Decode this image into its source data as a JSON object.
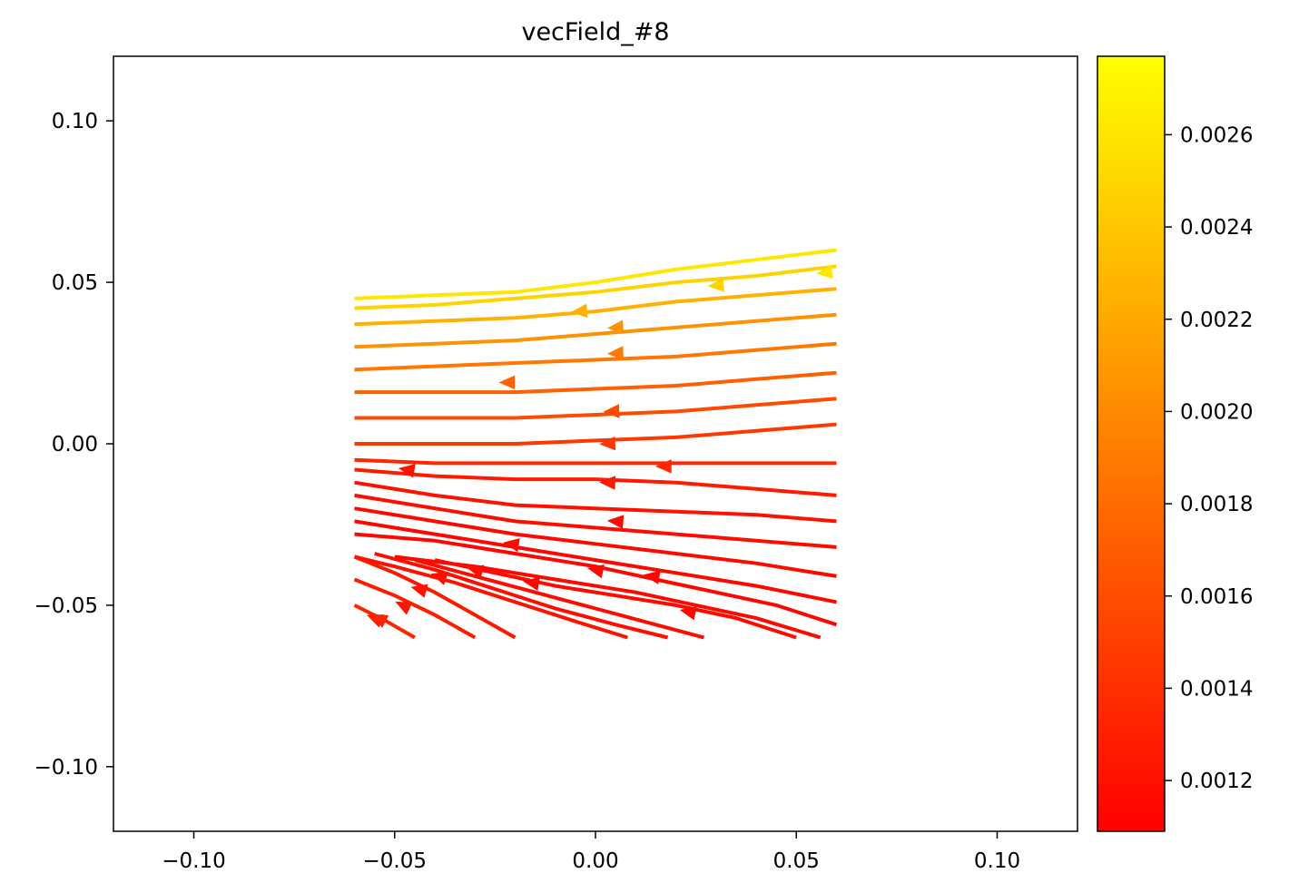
{
  "chart_data": {
    "type": "streamplot",
    "title": "vecField_#8",
    "xlabel": "",
    "ylabel": "",
    "xlim": [
      -0.12,
      0.12
    ],
    "ylim": [
      -0.12,
      0.12
    ],
    "x_ticks": [
      -0.1,
      -0.05,
      0.0,
      0.05,
      0.1
    ],
    "x_tick_labels": [
      "−0.10",
      "−0.05",
      "0.00",
      "0.05",
      "0.10"
    ],
    "y_ticks": [
      0.1,
      0.05,
      0.0,
      -0.05,
      -0.1
    ],
    "y_tick_labels": [
      "0.10",
      "0.05",
      "0.00",
      "−0.05",
      "−0.10"
    ],
    "grid": false,
    "field_domain": {
      "x": [
        -0.06,
        0.06
      ],
      "y": [
        -0.06,
        0.06
      ]
    },
    "field_model": {
      "description_of_flow": "leftward flow, shearing from upper-right to lower-left",
      "u_constant": -0.0012,
      "u_per_y": 0.0,
      "v_constant": 0.0006,
      "v_per_x": 0.012,
      "v_per_y": 0.0
    },
    "colorbar": {
      "colormap": "autumn",
      "min": 0.00109,
      "max": 0.00277,
      "min_color": "#ff0000",
      "max_color": "#ffff00",
      "ticks": [
        0.0012,
        0.0014,
        0.0016,
        0.0018,
        0.002,
        0.0022,
        0.0024,
        0.0026
      ],
      "tick_labels": [
        "0.0012",
        "0.0014",
        "0.0016",
        "0.0018",
        "0.0020",
        "0.0022",
        "0.0024",
        "0.0026"
      ]
    },
    "streamlines": [
      {
        "points": [
          [
            0.06,
            0.06
          ],
          [
            0.04,
            0.057
          ],
          [
            0.02,
            0.054
          ],
          [
            0.0,
            0.05
          ],
          [
            -0.02,
            0.047
          ],
          [
            -0.04,
            0.046
          ],
          [
            -0.06,
            0.045
          ]
        ],
        "speed": 0.00262,
        "arrow": [
          0.057,
          0.053
        ]
      },
      {
        "points": [
          [
            0.06,
            0.055
          ],
          [
            0.04,
            0.052
          ],
          [
            0.02,
            0.05
          ],
          [
            0.0,
            0.047
          ],
          [
            -0.02,
            0.045
          ],
          [
            -0.04,
            0.043
          ],
          [
            -0.06,
            0.042
          ]
        ],
        "speed": 0.00248,
        "arrow": [
          0.03,
          0.049
        ]
      },
      {
        "points": [
          [
            0.06,
            0.048
          ],
          [
            0.04,
            0.046
          ],
          [
            0.02,
            0.044
          ],
          [
            0.0,
            0.041
          ],
          [
            -0.02,
            0.039
          ],
          [
            -0.04,
            0.038
          ],
          [
            -0.06,
            0.037
          ]
        ],
        "speed": 0.00225,
        "arrow": [
          -0.004,
          0.041
        ]
      },
      {
        "points": [
          [
            0.06,
            0.04
          ],
          [
            0.04,
            0.038
          ],
          [
            0.02,
            0.036
          ],
          [
            0.0,
            0.034
          ],
          [
            -0.02,
            0.032
          ],
          [
            -0.04,
            0.031
          ],
          [
            -0.06,
            0.03
          ]
        ],
        "speed": 0.00205,
        "arrow": [
          0.005,
          0.036
        ]
      },
      {
        "points": [
          [
            0.06,
            0.031
          ],
          [
            0.04,
            0.029
          ],
          [
            0.02,
            0.027
          ],
          [
            0.0,
            0.026
          ],
          [
            -0.02,
            0.025
          ],
          [
            -0.04,
            0.024
          ],
          [
            -0.06,
            0.023
          ]
        ],
        "speed": 0.00188,
        "arrow": [
          0.005,
          0.028
        ]
      },
      {
        "points": [
          [
            0.06,
            0.022
          ],
          [
            0.04,
            0.02
          ],
          [
            0.02,
            0.018
          ],
          [
            0.0,
            0.017
          ],
          [
            -0.02,
            0.016
          ],
          [
            -0.04,
            0.016
          ],
          [
            -0.06,
            0.016
          ]
        ],
        "speed": 0.00172,
        "arrow": [
          -0.022,
          0.019
        ]
      },
      {
        "points": [
          [
            0.06,
            0.014
          ],
          [
            0.04,
            0.012
          ],
          [
            0.02,
            0.01
          ],
          [
            0.0,
            0.009
          ],
          [
            -0.02,
            0.008
          ],
          [
            -0.04,
            0.008
          ],
          [
            -0.06,
            0.008
          ]
        ],
        "speed": 0.00158,
        "arrow": [
          0.004,
          0.01
        ]
      },
      {
        "points": [
          [
            0.06,
            0.006
          ],
          [
            0.04,
            0.004
          ],
          [
            0.02,
            0.002
          ],
          [
            0.0,
            0.001
          ],
          [
            -0.02,
            0.0
          ],
          [
            -0.04,
            0.0
          ],
          [
            -0.06,
            0.0
          ]
        ],
        "speed": 0.00145,
        "arrow": [
          0.003,
          0.0
        ]
      },
      {
        "points": [
          [
            0.06,
            -0.006
          ],
          [
            0.04,
            -0.006
          ],
          [
            0.02,
            -0.006
          ],
          [
            0.0,
            -0.006
          ],
          [
            -0.02,
            -0.006
          ],
          [
            -0.04,
            -0.006
          ],
          [
            -0.06,
            -0.005
          ]
        ],
        "speed": 0.00135,
        "arrow": [
          0.017,
          -0.007
        ]
      },
      {
        "points": [
          [
            0.06,
            -0.016
          ],
          [
            0.04,
            -0.014
          ],
          [
            0.02,
            -0.012
          ],
          [
            0.0,
            -0.011
          ],
          [
            -0.02,
            -0.011
          ],
          [
            -0.04,
            -0.01
          ],
          [
            -0.06,
            -0.008
          ]
        ],
        "speed": 0.00126,
        "arrow": [
          0.003,
          -0.012
        ]
      },
      {
        "points": [
          [
            0.06,
            -0.024
          ],
          [
            0.04,
            -0.022
          ],
          [
            0.02,
            -0.021
          ],
          [
            0.0,
            -0.02
          ],
          [
            -0.02,
            -0.019
          ],
          [
            -0.04,
            -0.016
          ],
          [
            -0.06,
            -0.012
          ]
        ],
        "speed": 0.0012,
        "arrow": [
          -0.047,
          -0.008
        ]
      },
      {
        "points": [
          [
            0.06,
            -0.032
          ],
          [
            0.04,
            -0.03
          ],
          [
            0.02,
            -0.028
          ],
          [
            0.0,
            -0.026
          ],
          [
            -0.02,
            -0.024
          ],
          [
            -0.04,
            -0.02
          ],
          [
            -0.06,
            -0.016
          ]
        ],
        "speed": 0.00116,
        "arrow": [
          0.005,
          -0.024
        ]
      },
      {
        "points": [
          [
            0.06,
            -0.041
          ],
          [
            0.04,
            -0.037
          ],
          [
            0.02,
            -0.034
          ],
          [
            0.0,
            -0.031
          ],
          [
            -0.02,
            -0.028
          ],
          [
            -0.04,
            -0.024
          ],
          [
            -0.06,
            -0.02
          ]
        ],
        "speed": 0.00114,
        "arrow": [
          -0.021,
          -0.031
        ]
      },
      {
        "points": [
          [
            0.06,
            -0.049
          ],
          [
            0.04,
            -0.044
          ],
          [
            0.02,
            -0.04
          ],
          [
            0.0,
            -0.036
          ],
          [
            -0.02,
            -0.032
          ],
          [
            -0.04,
            -0.028
          ],
          [
            -0.06,
            -0.024
          ]
        ],
        "speed": 0.00113,
        "arrow": [
          0.014,
          -0.041
        ]
      },
      {
        "points": [
          [
            0.06,
            -0.056
          ],
          [
            0.045,
            -0.05
          ],
          [
            0.03,
            -0.046
          ],
          [
            0.015,
            -0.042
          ],
          [
            0.0,
            -0.038
          ],
          [
            -0.02,
            -0.034
          ],
          [
            -0.04,
            -0.03
          ],
          [
            -0.06,
            -0.028
          ]
        ],
        "speed": 0.00113,
        "arrow": [
          0.0,
          -0.039
        ]
      },
      {
        "points": [
          [
            0.056,
            -0.06
          ],
          [
            0.04,
            -0.054
          ],
          [
            0.025,
            -0.05
          ],
          [
            0.01,
            -0.046
          ],
          [
            -0.01,
            -0.042
          ],
          [
            -0.03,
            -0.038
          ],
          [
            -0.05,
            -0.035
          ]
        ],
        "speed": 0.00114,
        "arrow": [
          -0.016,
          -0.043
        ]
      },
      {
        "points": [
          [
            0.05,
            -0.06
          ],
          [
            0.035,
            -0.054
          ],
          [
            0.02,
            -0.05
          ],
          [
            0.005,
            -0.047
          ],
          [
            -0.01,
            -0.044
          ],
          [
            -0.025,
            -0.04
          ],
          [
            -0.04,
            -0.036
          ]
        ],
        "speed": 0.00115,
        "arrow": [
          0.023,
          -0.052
        ]
      },
      {
        "points": [
          [
            0.027,
            -0.06
          ],
          [
            0.015,
            -0.056
          ],
          [
            0.0,
            -0.051
          ],
          [
            -0.015,
            -0.046
          ],
          [
            -0.03,
            -0.041
          ],
          [
            -0.045,
            -0.036
          ]
        ],
        "speed": 0.00116,
        "arrow": [
          -0.03,
          -0.039
        ]
      },
      {
        "points": [
          [
            0.018,
            -0.06
          ],
          [
            0.005,
            -0.056
          ],
          [
            -0.01,
            -0.051
          ],
          [
            -0.025,
            -0.045
          ],
          [
            -0.04,
            -0.039
          ],
          [
            -0.055,
            -0.034
          ]
        ],
        "speed": 0.00118,
        "arrow": [
          -0.039,
          -0.041
        ]
      },
      {
        "points": [
          [
            0.008,
            -0.06
          ],
          [
            -0.005,
            -0.055
          ],
          [
            -0.02,
            -0.049
          ],
          [
            -0.035,
            -0.043
          ],
          [
            -0.05,
            -0.038
          ],
          [
            -0.06,
            -0.035
          ]
        ],
        "speed": 0.0012,
        "arrow": [
          -0.044,
          -0.045
        ]
      },
      {
        "points": [
          [
            -0.02,
            -0.06
          ],
          [
            -0.03,
            -0.053
          ],
          [
            -0.04,
            -0.046
          ],
          [
            -0.05,
            -0.04
          ],
          [
            -0.06,
            -0.035
          ]
        ],
        "speed": 0.00124,
        "arrow": [
          -0.048,
          -0.05
        ]
      },
      {
        "points": [
          [
            -0.03,
            -0.06
          ],
          [
            -0.04,
            -0.053
          ],
          [
            -0.05,
            -0.047
          ],
          [
            -0.06,
            -0.042
          ]
        ],
        "speed": 0.00128,
        "arrow": [
          -0.055,
          -0.054
        ]
      },
      {
        "points": [
          [
            -0.045,
            -0.06
          ],
          [
            -0.052,
            -0.055
          ],
          [
            -0.06,
            -0.05
          ]
        ],
        "speed": 0.00132,
        "arrow": [
          -0.054,
          -0.054
        ]
      }
    ],
    "all_streamlines_flow_left": true
  }
}
